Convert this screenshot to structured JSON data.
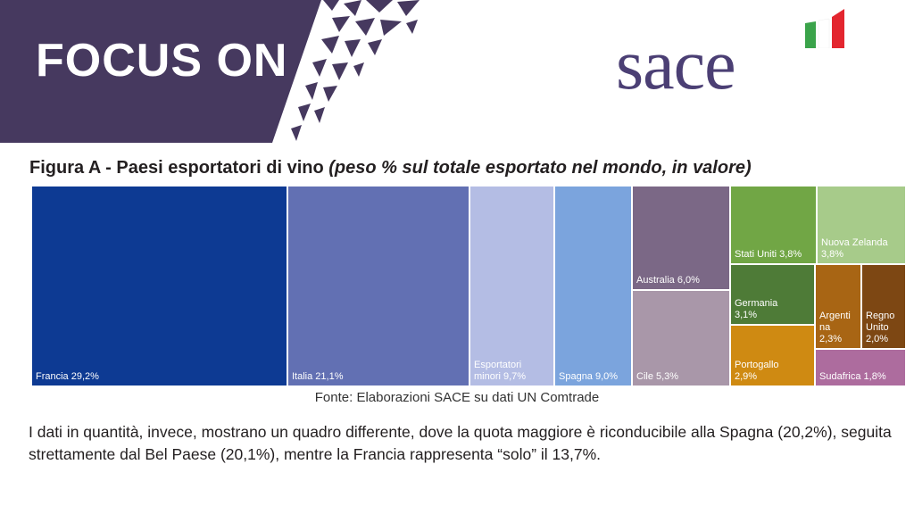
{
  "header": {
    "banner_title": "FOCUS ON",
    "logo_text": "sace"
  },
  "figure": {
    "title_bold": "Figura A - Paesi esportatori di vino ",
    "title_italic": "(peso % sul totale esportato nel mondo, in valore)",
    "source": "Fonte: Elaborazioni SACE su dati UN Comtrade"
  },
  "body_text": "I dati in quantità, invece, mostrano un quadro differente, dove la quota maggiore è riconducibile alla Spagna (20,2%), seguita strettamente dal Bel Paese (20,1%), mentre la Francia rappresenta “solo” il 13,7%.",
  "colors": {
    "banner": "#46395f",
    "logo": "#4b3f74",
    "flag_green": "#3aa34a",
    "flag_red": "#e3262f"
  },
  "chart_data": {
    "type": "treemap",
    "title": "Figura A - Paesi esportatori di vino (peso % sul totale esportato nel mondo, in valore)",
    "unit": "%",
    "items": [
      {
        "name": "Francia",
        "value": 29.2,
        "label": "Francia 29,2%",
        "color": "#0d3a93"
      },
      {
        "name": "Italia",
        "value": 21.1,
        "label": "Italia 21,1%",
        "color": "#6270b3"
      },
      {
        "name": "Esportatori minori",
        "value": 9.7,
        "label": "Esportatori\nminori 9,7%",
        "color": "#b4bde4"
      },
      {
        "name": "Spagna",
        "value": 9.0,
        "label": "Spagna 9,0%",
        "color": "#7ba4dd"
      },
      {
        "name": "Australia",
        "value": 6.0,
        "label": "Australia 6,0%",
        "color": "#7b6886"
      },
      {
        "name": "Cile",
        "value": 5.3,
        "label": "Cile 5,3%",
        "color": "#a997a9"
      },
      {
        "name": "Stati Uniti",
        "value": 3.8,
        "label": "Stati Uniti 3,8%",
        "color": "#71a645"
      },
      {
        "name": "Nuova Zelanda",
        "value": 3.8,
        "label": "Nuova Zelanda\n3,8%",
        "color": "#a7cb8a"
      },
      {
        "name": "Germania",
        "value": 3.1,
        "label": "Germania\n3,1%",
        "color": "#4e7b37"
      },
      {
        "name": "Portogallo",
        "value": 2.9,
        "label": "Portogallo\n2,9%",
        "color": "#cf8a12"
      },
      {
        "name": "Argentina",
        "value": 2.3,
        "label": "Argenti\nna\n2,3%",
        "color": "#a86514"
      },
      {
        "name": "Regno Unito",
        "value": 2.0,
        "label": "Regno\nUnito\n2,0%",
        "color": "#7d4713"
      },
      {
        "name": "Sudafrica",
        "value": 1.8,
        "label": "Sudafrica 1,8%",
        "color": "#ad6c9e"
      }
    ]
  }
}
